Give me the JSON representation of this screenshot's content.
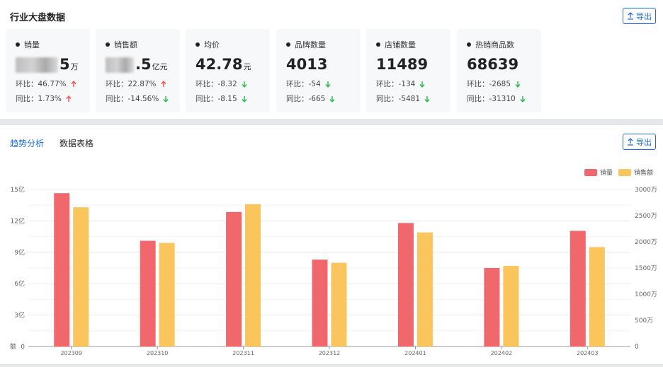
{
  "section": {
    "title": "行业大盘数据",
    "export_label": "导出"
  },
  "cards": [
    {
      "label": "销量",
      "value_visible": "5",
      "unit": "万",
      "blurred": true,
      "hb_label": "环比：",
      "hb": "46.77%",
      "hb_dir": "up",
      "tb_label": "同比：",
      "tb": "1.73%",
      "tb_dir": "up"
    },
    {
      "label": "销售额",
      "value_visible": ".5",
      "unit": "亿元",
      "blurred": true,
      "hb_label": "环比：",
      "hb": "22.87%",
      "hb_dir": "up",
      "tb_label": "同比：",
      "tb": "-14.56%",
      "tb_dir": "down"
    },
    {
      "label": "均价",
      "value_visible": "42.78",
      "unit": "元",
      "blurred": false,
      "hb_label": "环比：",
      "hb": "-8.32",
      "hb_dir": "down",
      "tb_label": "同比：",
      "tb": "-8.15",
      "tb_dir": "down"
    },
    {
      "label": "品牌数量",
      "value_visible": "4013",
      "unit": "",
      "blurred": false,
      "hb_label": "环比：",
      "hb": "-54",
      "hb_dir": "down",
      "tb_label": "同比：",
      "tb": "-665",
      "tb_dir": "down"
    },
    {
      "label": "店铺数量",
      "value_visible": "11489",
      "unit": "",
      "blurred": false,
      "hb_label": "环比：",
      "hb": "-134",
      "hb_dir": "down",
      "tb_label": "同比：",
      "tb": "-5481",
      "tb_dir": "down"
    },
    {
      "label": "热销商品数",
      "value_visible": "68639",
      "unit": "",
      "blurred": false,
      "hb_label": "环比：",
      "hb": "-2685",
      "hb_dir": "down",
      "tb_label": "同比：",
      "tb": "-31310",
      "tb_dir": "down"
    }
  ],
  "tabs": {
    "trend": "趋势分析",
    "table": "数据表格",
    "export_label": "导出"
  },
  "colors": {
    "accent": "#1e6fd9",
    "up": "#f24c4c",
    "down": "#22b84a",
    "sales": "#f0686c",
    "revenue": "#f9c55c"
  },
  "chart_data": {
    "type": "bar",
    "categories": [
      "202309",
      "202310",
      "202311",
      "202312",
      "202401",
      "202402",
      "202403"
    ],
    "series": [
      {
        "name": "销量",
        "axis": "right",
        "values": [
          2930,
          2020,
          2570,
          1660,
          2360,
          1500,
          2210
        ]
      },
      {
        "name": "销售额",
        "axis": "left",
        "values": [
          13.3,
          9.9,
          13.6,
          8.0,
          10.9,
          7.7,
          9.5
        ]
      }
    ],
    "left_axis": {
      "ticks": [
        "0",
        "3亿",
        "6亿",
        "9亿",
        "12亿",
        "15亿"
      ],
      "ylim": [
        0,
        15
      ],
      "label": "销售额"
    },
    "right_axis": {
      "ticks": [
        "0",
        "500万",
        "1000万",
        "1500万",
        "2000万",
        "2500万",
        "3000万"
      ],
      "ylim": [
        0,
        3000
      ]
    },
    "legend": [
      "销量",
      "销售额"
    ],
    "legend_position": "top-right",
    "grid": true
  }
}
